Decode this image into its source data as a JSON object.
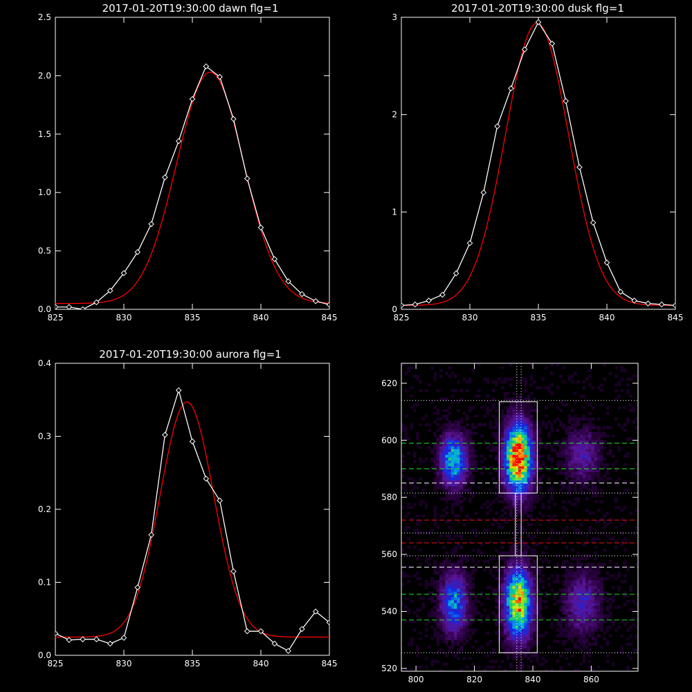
{
  "colors": {
    "background": "#000000",
    "axes": "#ffffff",
    "data": "#ffffff",
    "fit": "#ff0000",
    "green_line": "#22dd22",
    "red_line": "#ee1111"
  },
  "chart_data": [
    {
      "type": "line",
      "title": "2017-01-20T19:30:00 dawn flg=1",
      "xlim": [
        825,
        845
      ],
      "ylim": [
        0,
        2.5
      ],
      "xticks": [
        "825",
        "830",
        "835",
        "840",
        "845"
      ],
      "yticks": [
        "0.0",
        "0.5",
        "1.0",
        "1.5",
        "2.0",
        "2.5"
      ],
      "series": [
        {
          "style": "line+diamond",
          "color": "#ffffff",
          "x": [
            825,
            826,
            827,
            828,
            829,
            830,
            831,
            832,
            833,
            834,
            835,
            836,
            837,
            838,
            839,
            840,
            841,
            842,
            843,
            844,
            845
          ],
          "y": [
            0.02,
            0.02,
            0.0,
            0.06,
            0.16,
            0.31,
            0.49,
            0.73,
            1.13,
            1.44,
            1.8,
            2.08,
            1.99,
            1.63,
            1.12,
            0.7,
            0.43,
            0.24,
            0.13,
            0.07,
            0.04
          ]
        },
        {
          "style": "smooth",
          "color": "#ff0000",
          "gaussian": {
            "amplitude": 1.98,
            "center": 836.3,
            "sigma": 2.45,
            "offset": 0.05
          }
        }
      ]
    },
    {
      "type": "line",
      "title": "2017-01-20T19:30:00 dusk flg=1",
      "xlim": [
        825,
        845
      ],
      "ylim": [
        0,
        3
      ],
      "xticks": [
        "825",
        "830",
        "835",
        "840",
        "845"
      ],
      "yticks": [
        "0",
        "1",
        "2",
        "3"
      ],
      "series": [
        {
          "style": "line+diamond",
          "color": "#ffffff",
          "x": [
            825,
            826,
            827,
            828,
            829,
            830,
            831,
            832,
            833,
            834,
            835,
            836,
            837,
            838,
            839,
            840,
            841,
            842,
            843,
            844,
            845
          ],
          "y": [
            0.04,
            0.05,
            0.09,
            0.15,
            0.37,
            0.68,
            1.2,
            1.88,
            2.27,
            2.67,
            2.95,
            2.73,
            2.14,
            1.46,
            0.89,
            0.48,
            0.18,
            0.09,
            0.06,
            0.05,
            0.04
          ]
        },
        {
          "style": "smooth",
          "color": "#ff0000",
          "gaussian": {
            "amplitude": 2.9,
            "center": 834.9,
            "sigma": 2.3,
            "offset": 0.04
          }
        }
      ]
    },
    {
      "type": "line",
      "title": "2017-01-20T19:30:00 aurora flg=1",
      "xlim": [
        825,
        845
      ],
      "ylim": [
        0,
        0.4
      ],
      "xticks": [
        "825",
        "830",
        "835",
        "840",
        "845"
      ],
      "yticks": [
        "0.0",
        "0.1",
        "0.2",
        "0.3",
        "0.4"
      ],
      "series": [
        {
          "style": "line+diamond",
          "color": "#ffffff",
          "x": [
            825,
            826,
            827,
            828,
            829,
            830,
            831,
            832,
            833,
            834,
            835,
            836,
            837,
            838,
            839,
            840,
            841,
            842,
            843,
            844,
            845
          ],
          "y": [
            0.03,
            0.021,
            0.022,
            0.022,
            0.016,
            0.024,
            0.093,
            0.165,
            0.302,
            0.363,
            0.293,
            0.242,
            0.212,
            0.115,
            0.033,
            0.033,
            0.016,
            0.006,
            0.036,
            0.06,
            0.045
          ]
        },
        {
          "style": "smooth",
          "color": "#ff0000",
          "gaussian": {
            "amplitude": 0.322,
            "center": 834.6,
            "sigma": 1.95,
            "offset": 0.025
          }
        }
      ]
    },
    {
      "type": "heatmap",
      "title": "",
      "xlim": [
        795,
        876
      ],
      "ylim": [
        519,
        627
      ],
      "xticks": [
        "800",
        "820",
        "840",
        "860"
      ],
      "yticks": [
        "520",
        "540",
        "560",
        "580",
        "600",
        "620"
      ],
      "blobs": [
        {
          "x": 835,
          "y": 594,
          "sx": 3.0,
          "sy": 8.0,
          "amp": 1.0
        },
        {
          "x": 835,
          "y": 543,
          "sx": 3.0,
          "sy": 8.0,
          "amp": 0.85
        },
        {
          "x": 813,
          "y": 593,
          "sx": 3.0,
          "sy": 6.0,
          "amp": 0.55
        },
        {
          "x": 813,
          "y": 543,
          "sx": 3.0,
          "sy": 7.0,
          "amp": 0.45
        },
        {
          "x": 857,
          "y": 595,
          "sx": 4.0,
          "sy": 6.0,
          "amp": 0.22
        },
        {
          "x": 857,
          "y": 543,
          "sx": 4.0,
          "sy": 7.0,
          "amp": 0.25
        }
      ],
      "boxes": [
        {
          "x0": 828.5,
          "x1": 841.5,
          "y0": 581.5,
          "y1": 613.5
        },
        {
          "x0": 828.5,
          "x1": 841.5,
          "y0": 525.5,
          "y1": 559.5
        },
        {
          "x0": 834.0,
          "x1": 836.0,
          "y0": 559.5,
          "y1": 581.5
        }
      ],
      "hlines": [
        {
          "y": 614,
          "style": "dotted",
          "color": "#ffffff"
        },
        {
          "y": 599,
          "style": "dashed",
          "color": "#22dd22"
        },
        {
          "y": 590,
          "style": "dashed",
          "color": "#22dd22"
        },
        {
          "y": 585,
          "style": "dashed",
          "color": "#ffffff"
        },
        {
          "y": 581.5,
          "style": "dotted",
          "color": "#ffffff"
        },
        {
          "y": 572,
          "style": "dashed",
          "color": "#ee1111"
        },
        {
          "y": 567.5,
          "style": "dotted",
          "color": "#ffffff"
        },
        {
          "y": 564,
          "style": "dashed",
          "color": "#ee1111"
        },
        {
          "y": 559.5,
          "style": "dotted",
          "color": "#ffffff"
        },
        {
          "y": 555.5,
          "style": "dashed",
          "color": "#ffffff"
        },
        {
          "y": 546,
          "style": "dashed",
          "color": "#22dd22"
        },
        {
          "y": 537,
          "style": "dashed",
          "color": "#22dd22"
        },
        {
          "y": 525.5,
          "style": "dotted",
          "color": "#ffffff"
        }
      ],
      "vlines": [
        {
          "x": 834.5,
          "style": "dotted",
          "color": "#ffffff"
        },
        {
          "x": 836.0,
          "style": "dotted",
          "color": "#ffffff"
        }
      ]
    }
  ]
}
